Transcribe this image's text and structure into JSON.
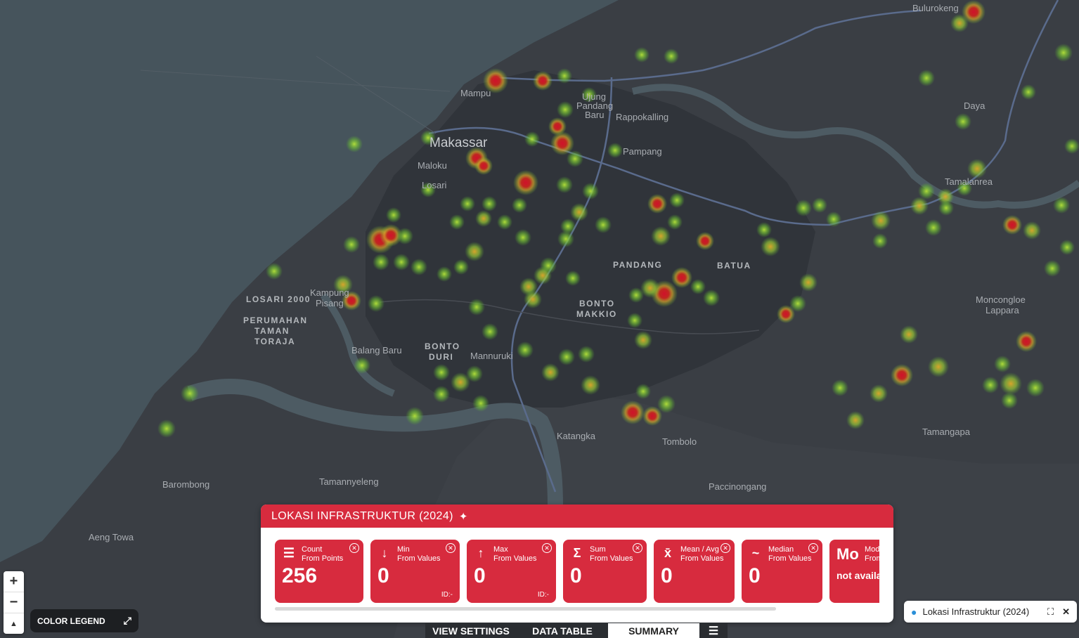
{
  "map": {
    "labels": {
      "bulurokeng": "Bulurokeng",
      "mampu": "Mampu",
      "ujung_pandang_baru_1": "Ujung",
      "ujung_pandang_baru_2": "Pandang",
      "ujung_pandang_baru_3": "Baru",
      "rappokalling": "Rappokalling",
      "daya": "Daya",
      "makassar": "Makassar",
      "maloku": "Maloku",
      "pampang": "Pampang",
      "tamalanrea": "Tamalanrea",
      "losari": "Losari",
      "pandang": "PANDANG",
      "batua": "BATUA",
      "losari2000": "LOSARI 2000",
      "perumahan1": "PERUMAHAN",
      "perumahan2": "TAMAN",
      "perumahan3": "TORAJA",
      "kampung_pisang1": "Kampung",
      "kampung_pisang2": "Pisang",
      "bonto_makkio1": "BONTO",
      "bonto_makkio2": "MAKKIO",
      "moncongloe1": "Moncongloe",
      "moncongloe2": "Lappara",
      "balang_baru": "Balang Baru",
      "bonto_duri1": "BONTO",
      "bonto_duri2": "DURI",
      "mannuruki": "Mannuruki",
      "katangka": "Katangka",
      "tombolo": "Tombolo",
      "tamangapa": "Tamangapa",
      "barombong": "Barombong",
      "tamannyeleng": "Tamannyeleng",
      "paccinongang": "Paccinongang",
      "aeng_towa": "Aeng Towa"
    }
  },
  "controls": {
    "zoom_in": "+",
    "zoom_out": "−",
    "compass": "▲",
    "color_legend": "COLOR LEGEND"
  },
  "summary": {
    "title": "LOKASI INFRASTRUKTUR (2024)",
    "cards": [
      {
        "label": "Count",
        "sub": "From Points",
        "value": "256",
        "id": ""
      },
      {
        "label": "Min",
        "sub": "From Values",
        "value": "0",
        "id": "ID:-"
      },
      {
        "label": "Max",
        "sub": "From Values",
        "value": "0",
        "id": "ID:-"
      },
      {
        "label": "Sum",
        "sub": "From Values",
        "value": "0",
        "id": ""
      },
      {
        "label": "Mean / Avg",
        "sub": "From Values",
        "value": "0",
        "id": ""
      },
      {
        "label": "Median",
        "sub": "From Values",
        "value": "0",
        "id": ""
      },
      {
        "label": "Mod",
        "sub": "From",
        "value": "not availa",
        "icon": "Mo"
      }
    ]
  },
  "tabs": [
    "VIEW SETTINGS",
    "DATA TABLE",
    "SUMMARY"
  ],
  "layer_chip": {
    "label": "Lokasi Infrastruktur (2024)"
  },
  "colors": {
    "accent": "#d72b3e",
    "heat_low": "#7bd13a",
    "heat_high": "#d0112b",
    "water": "#46545c",
    "land": "#3b3f45"
  }
}
